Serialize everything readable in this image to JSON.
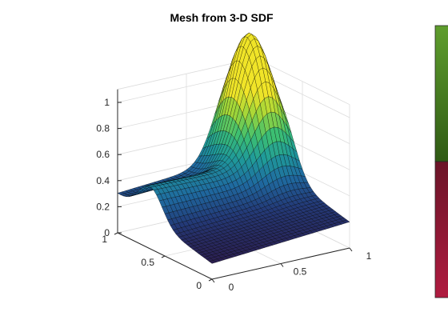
{
  "chart_data": {
    "type": "surface-mesh",
    "title": "Mesh from 3-D SDF",
    "xlabel": "",
    "ylabel": "",
    "zlabel": "",
    "x_ticks": [
      "0",
      "0.5",
      "1"
    ],
    "y_ticks": [
      "0",
      "0.5",
      "1"
    ],
    "z_ticks": [
      "0",
      "0.2",
      "0.4",
      "0.6",
      "0.8",
      "1"
    ],
    "xlim": [
      0,
      1
    ],
    "ylim": [
      0,
      1
    ],
    "zlim": [
      0,
      1.1
    ],
    "grid": true,
    "surface": {
      "description_peak": {
        "x": 0.85,
        "y": 0.85,
        "z": 1.0
      },
      "samples": [
        {
          "x": 0.0,
          "y": 0.0,
          "z": 0.12
        },
        {
          "x": 0.0,
          "y": 0.5,
          "z": 0.22
        },
        {
          "x": 0.0,
          "y": 1.0,
          "z": 0.3
        },
        {
          "x": 0.5,
          "y": 0.0,
          "z": 0.15
        },
        {
          "x": 0.5,
          "y": 0.5,
          "z": 0.35
        },
        {
          "x": 0.5,
          "y": 1.0,
          "z": 0.45
        },
        {
          "x": 1.0,
          "y": 0.0,
          "z": 0.1
        },
        {
          "x": 1.0,
          "y": 0.5,
          "z": 0.3
        },
        {
          "x": 0.85,
          "y": 0.85,
          "z": 1.0
        }
      ],
      "colormap": [
        "#2c1a4a",
        "#233a78",
        "#1f6aa0",
        "#1f9a9a",
        "#3cbf72",
        "#9cd53a",
        "#f0e428"
      ]
    },
    "colorbar": {
      "colors": [
        "#5f9e2d",
        "#2f5a14",
        "#6b1528",
        "#b01b40"
      ]
    }
  }
}
